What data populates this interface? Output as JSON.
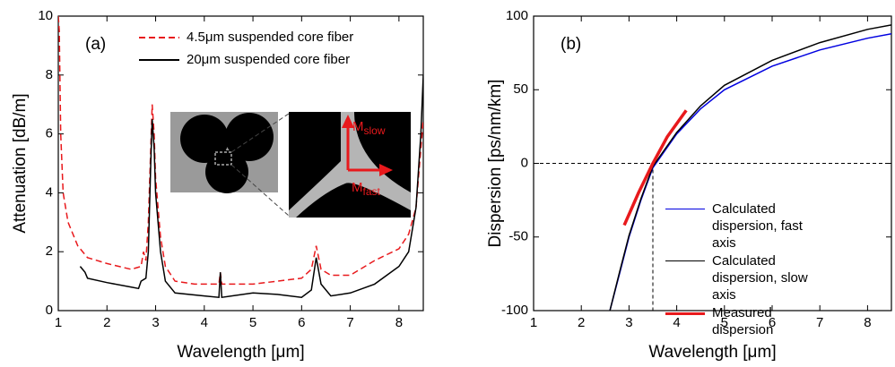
{
  "chart_data": [
    {
      "type": "line",
      "panel_label": "(a)",
      "xlabel": "Wavelength [μm]",
      "ylabel": "Attenuation [dB/m]",
      "xlim": [
        1,
        8.5
      ],
      "ylim": [
        0,
        10
      ],
      "xticks": [
        1,
        2,
        3,
        4,
        5,
        6,
        7,
        8
      ],
      "yticks": [
        0,
        2,
        4,
        6,
        8,
        10
      ],
      "inset_labels": [
        {
          "main": "M",
          "sub": "slow"
        },
        {
          "main": "M",
          "sub": "fast"
        }
      ],
      "series": [
        {
          "name": "4.5μm suspended core fiber",
          "color": "#e8191c",
          "dash": true,
          "x": [
            1,
            1.02,
            1.05,
            1.1,
            1.2,
            1.4,
            1.6,
            2,
            2.5,
            2.7,
            2.75,
            2.8,
            2.85,
            2.9,
            2.93,
            2.97,
            3.0,
            3.1,
            3.2,
            3.4,
            3.8,
            4.3,
            4.33,
            4.36,
            5,
            5.5,
            6,
            6.2,
            6.3,
            6.4,
            6.6,
            7,
            7.5,
            8,
            8.2,
            8.35,
            8.45,
            8.5
          ],
          "values": [
            10,
            9.5,
            6,
            4,
            3,
            2.2,
            1.8,
            1.6,
            1.4,
            1.5,
            2,
            1.7,
            3,
            5.5,
            7,
            6,
            4.5,
            2.5,
            1.5,
            1.0,
            0.9,
            0.9,
            1.3,
            0.9,
            0.9,
            1.0,
            1.1,
            1.4,
            2.2,
            1.4,
            1.2,
            1.2,
            1.7,
            2.1,
            2.6,
            3.5,
            5.5,
            6.5
          ]
        },
        {
          "name": "20μm suspended core fiber",
          "color": "#000000",
          "dash": false,
          "x": [
            1.45,
            1.55,
            1.6,
            2,
            2.5,
            2.65,
            2.7,
            2.8,
            2.85,
            2.9,
            2.93,
            2.97,
            3.0,
            3.1,
            3.2,
            3.4,
            4,
            4.3,
            4.33,
            4.36,
            5,
            5.5,
            6,
            6.2,
            6.3,
            6.4,
            6.6,
            7,
            7.5,
            8,
            8.2,
            8.35,
            8.45,
            8.5
          ],
          "values": [
            1.5,
            1.3,
            1.1,
            0.95,
            0.8,
            0.75,
            1.0,
            1.1,
            2,
            5,
            6.5,
            5.5,
            4,
            2,
            1.0,
            0.6,
            0.5,
            0.45,
            1.3,
            0.45,
            0.6,
            0.55,
            0.45,
            0.7,
            1.8,
            0.9,
            0.5,
            0.6,
            0.9,
            1.5,
            2,
            3.5,
            6,
            8
          ]
        }
      ]
    },
    {
      "type": "line",
      "panel_label": "(b)",
      "xlabel": "Wavelength [μm]",
      "ylabel": "Dispersion [ps/nm/km]",
      "xlim": [
        1,
        8.5
      ],
      "ylim": [
        -100,
        100
      ],
      "xticks": [
        1,
        2,
        3,
        4,
        5,
        6,
        7,
        8
      ],
      "yticks": [
        -100,
        -50,
        0,
        50,
        100
      ],
      "reference_lines": {
        "y": 0,
        "x": 3.5
      },
      "series": [
        {
          "name": "Calculated dispersion, fast axis",
          "color": "#0000e0",
          "width": 1.5,
          "x": [
            2.6,
            2.8,
            3,
            3.25,
            3.5,
            4,
            4.5,
            5,
            6,
            7,
            8,
            8.5
          ],
          "values": [
            -100,
            -75,
            -50,
            -25,
            -3,
            20,
            37,
            50,
            66,
            77,
            85,
            88
          ]
        },
        {
          "name": "Calculated dispersion, slow axis",
          "color": "#000000",
          "width": 1.5,
          "x": [
            2.6,
            2.8,
            3,
            3.25,
            3.5,
            4,
            4.5,
            5,
            6,
            7,
            8,
            8.5
          ],
          "values": [
            -100,
            -74,
            -49,
            -24,
            -2,
            21,
            39,
            53,
            70,
            82,
            91,
            94
          ]
        },
        {
          "name": "Measured dispersion",
          "color": "#e8191c",
          "width": 3.5,
          "x": [
            2.9,
            3.2,
            3.5,
            3.8,
            4.2
          ],
          "values": [
            -42,
            -20,
            0,
            18,
            36
          ]
        }
      ]
    }
  ]
}
